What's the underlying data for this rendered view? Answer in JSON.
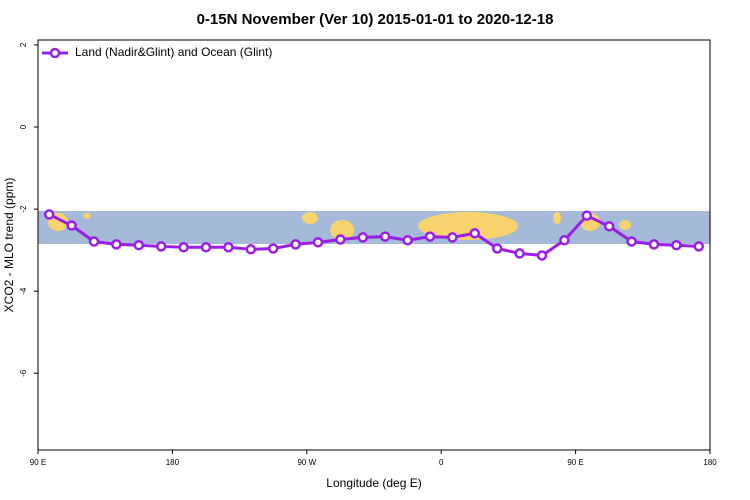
{
  "chart_data": {
    "type": "line",
    "title": "0-15N November (Ver 10)   2015-01-01 to 2020-12-18",
    "x_label": "Longitude (deg E)",
    "y_label": "XCO2 - MLO trend (ppm)",
    "x": [
      97.5,
      112.5,
      127.5,
      142.5,
      157.5,
      172.5,
      187.5,
      202.5,
      217.5,
      232.5,
      247.5,
      262.5,
      277.5,
      292.5,
      307.5,
      322.5,
      337.5,
      352.5,
      367.5,
      382.5,
      397.5,
      412.5,
      427.5,
      442.5,
      457.5,
      472.5,
      487.5,
      502.5,
      517.5,
      532.5
    ],
    "series": [
      {
        "name": "Land (Nadir&Glint) and Ocean (Glint)",
        "color": "#9b1ee6",
        "values": [
          -2.13,
          -2.4,
          -2.79,
          -2.86,
          -2.88,
          -2.91,
          -2.93,
          -2.93,
          -2.93,
          -2.98,
          -2.96,
          -2.86,
          -2.81,
          -2.74,
          -2.69,
          -2.67,
          -2.76,
          -2.67,
          -2.69,
          -2.59,
          -2.96,
          -3.08,
          -3.13,
          -2.76,
          -2.16,
          -2.42,
          -2.79,
          -2.86,
          -2.88,
          -2.91
        ]
      }
    ],
    "xlim": [
      90,
      540
    ],
    "xticks": [
      {
        "value": 90,
        "label": "90 E"
      },
      180,
      {
        "value": 270,
        "label": "90 W"
      },
      {
        "value": 360,
        "label": "0"
      },
      {
        "value": 450,
        "label": "90 E"
      },
      {
        "value": 540,
        "label": "180"
      }
    ],
    "ylim": [
      -7.87,
      2.12
    ],
    "yticks": [
      -6,
      -4,
      -2,
      0,
      2
    ],
    "legend": "top-left"
  }
}
